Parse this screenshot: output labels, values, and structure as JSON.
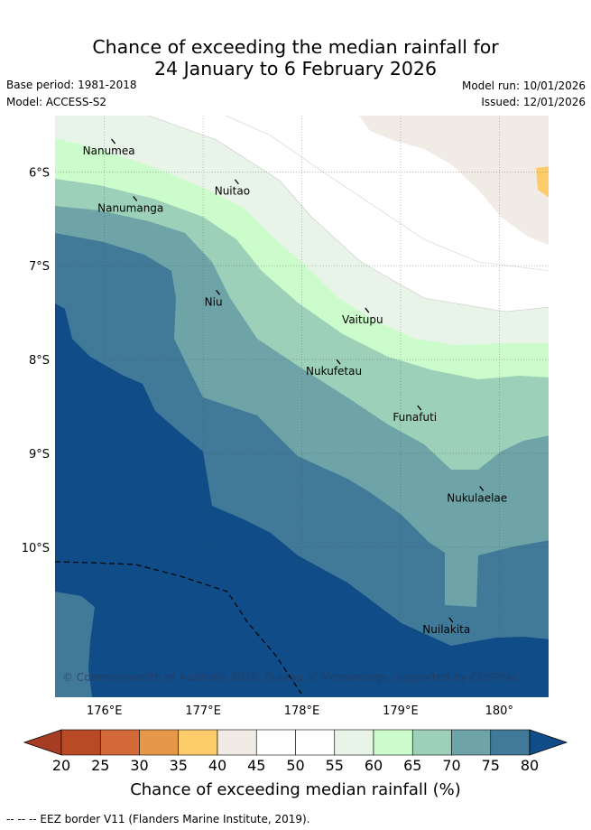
{
  "title": {
    "line1": "Chance of exceeding the median rainfall for",
    "line2": "24 January to 6 February 2026"
  },
  "meta": {
    "base_period": "Base period: 1981-2018",
    "model": "Model: ACCESS-S2",
    "model_run": "Model run: 10/01/2026",
    "issued": "Issued: 12/01/2026"
  },
  "map": {
    "lon_range": [
      175.5,
      180.5
    ],
    "lat_range": [
      -11.6,
      -5.4
    ],
    "lon_ticks": [
      {
        "value": 176,
        "label": "176°E"
      },
      {
        "value": 177,
        "label": "177°E"
      },
      {
        "value": 178,
        "label": "178°E"
      },
      {
        "value": 179,
        "label": "179°E"
      },
      {
        "value": 180,
        "label": "180°"
      }
    ],
    "lat_ticks": [
      {
        "value": -6,
        "label": "6°S"
      },
      {
        "value": -7,
        "label": "7°S"
      },
      {
        "value": -8,
        "label": "8°S"
      },
      {
        "value": -9,
        "label": "9°S"
      },
      {
        "value": -10,
        "label": "10°S"
      }
    ],
    "islands": [
      {
        "name": "Nanumea",
        "lon": 176.1,
        "lat": -5.68
      },
      {
        "name": "Nuitao",
        "lon": 177.35,
        "lat": -6.11
      },
      {
        "name": "Nanumanga",
        "lon": 176.32,
        "lat": -6.29
      },
      {
        "name": "Niu",
        "lon": 177.16,
        "lat": -7.29
      },
      {
        "name": "Vaitupu",
        "lon": 178.67,
        "lat": -7.48
      },
      {
        "name": "Nukufetau",
        "lon": 178.38,
        "lat": -8.03
      },
      {
        "name": "Funafuti",
        "lon": 179.2,
        "lat": -8.52
      },
      {
        "name": "Nukulaelae",
        "lon": 179.83,
        "lat": -9.38
      },
      {
        "name": "Nuilakita",
        "lon": 179.52,
        "lat": -10.78
      }
    ],
    "copyright": "© Commonwealth of Australia 2026, Bureau of Meteorology, supported by COSPPac"
  },
  "colorbar": {
    "ticks": [
      "20",
      "25",
      "30",
      "35",
      "40",
      "45",
      "50",
      "55",
      "60",
      "65",
      "70",
      "75",
      "80"
    ],
    "colors": {
      "below_20": "#a63c22",
      "20-25": "#b84a26",
      "25-30": "#d4693a",
      "30-35": "#e59848",
      "35-40": "#fdcc6a",
      "40-45": "#f1ebe6",
      "45-50": "#ffffff",
      "50-55": "#ffffff",
      "55-60": "#e9f4e8",
      "60-65": "#ccfccb",
      "65-70": "#9cd0b8",
      "70-75": "#6ea4a8",
      "75-80": "#417a98",
      "above_80": "#104c88"
    },
    "label": "Chance of exceeding median rainfall (%)"
  },
  "footnote": "--  --  -- EEZ border V11 (Flanders Marine Institute, 2019)."
}
